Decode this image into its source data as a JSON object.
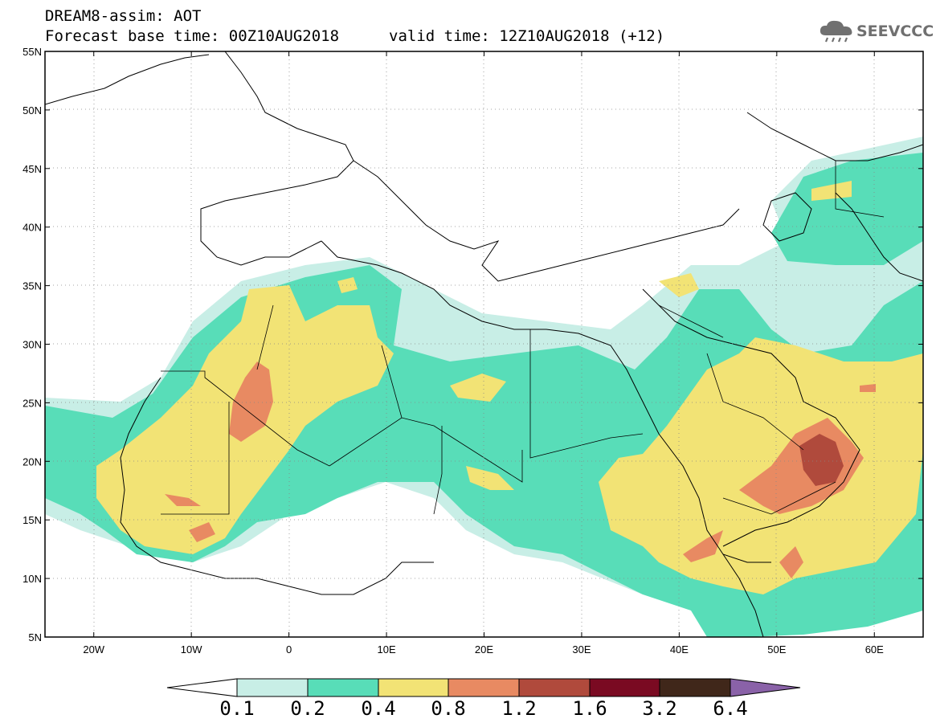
{
  "title": {
    "line1": "DREAM8-assim: AOT",
    "base_time": "Forecast base time: 00Z10AUG2018",
    "valid_time": "valid time: 12Z10AUG2018 (+12)"
  },
  "logo": {
    "text": "SEEVCCC",
    "icon": "cloud-rain-icon"
  },
  "map": {
    "lat_labels": [
      "55N",
      "50N",
      "45N",
      "40N",
      "35N",
      "30N",
      "25N",
      "20N",
      "15N",
      "10N",
      "5N"
    ],
    "lon_labels": [
      "20W",
      "10W",
      "0",
      "10E",
      "20E",
      "30E",
      "40E",
      "50E",
      "60E"
    ],
    "lat_range": [
      5,
      55
    ],
    "lon_range": [
      -25,
      65
    ],
    "grid": "dotted"
  },
  "colorbar": {
    "levels": [
      "0.1",
      "0.2",
      "0.4",
      "0.8",
      "1.2",
      "1.6",
      "3.2",
      "6.4"
    ],
    "colors": {
      "below": "#ffffff",
      "0.1-0.2": "#c8eee6",
      "0.2-0.4": "#58ddb8",
      "0.4-0.8": "#f2e375",
      "0.8-1.2": "#e88a62",
      "1.2-1.6": "#b04a3c",
      "1.6-3.2": "#7a0a22",
      "3.2-6.4": "#40271a",
      "above": "#8a62a8"
    }
  }
}
